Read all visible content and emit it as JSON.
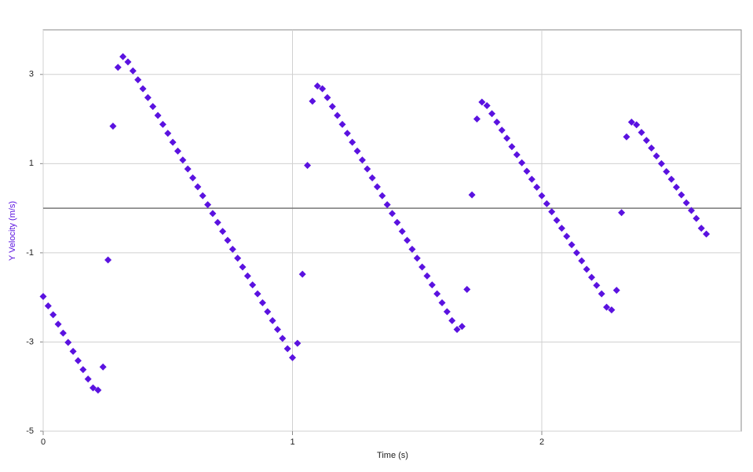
{
  "chart_data": {
    "type": "scatter",
    "x_label": "Time (s)",
    "y_label": "Y Velocity (m/s)",
    "color": "#5a12e0",
    "grid": true,
    "xlim": [
      0,
      2.8
    ],
    "ylim": [
      -5,
      4
    ],
    "xticks": [
      0,
      1,
      2
    ],
    "yticks": [
      -5,
      -3,
      -1,
      1,
      3
    ],
    "x": [
      0,
      0.02,
      0.04,
      0.06,
      0.08,
      0.1,
      0.12,
      0.14,
      0.16,
      0.18,
      0.2,
      0.22,
      0.24,
      0.26,
      0.28,
      0.3,
      0.32,
      0.34,
      0.36,
      0.38,
      0.4,
      0.42,
      0.44,
      0.46,
      0.48,
      0.5,
      0.52,
      0.54,
      0.56,
      0.58,
      0.6,
      0.62,
      0.64,
      0.66,
      0.68,
      0.7,
      0.72,
      0.74,
      0.76,
      0.78,
      0.8,
      0.82,
      0.84,
      0.86,
      0.88,
      0.9,
      0.92,
      0.94,
      0.96,
      0.98,
      1.0,
      1.02,
      1.04,
      1.06,
      1.08,
      1.1,
      1.12,
      1.14,
      1.16,
      1.18,
      1.2,
      1.22,
      1.24,
      1.26,
      1.28,
      1.3,
      1.32,
      1.34,
      1.36,
      1.38,
      1.4,
      1.42,
      1.44,
      1.46,
      1.48,
      1.5,
      1.52,
      1.54,
      1.56,
      1.58,
      1.6,
      1.62,
      1.64,
      1.66,
      1.68,
      1.7,
      1.72,
      1.74,
      1.76,
      1.78,
      1.8,
      1.82,
      1.84,
      1.86,
      1.88,
      1.9,
      1.92,
      1.94,
      1.96,
      1.98,
      2.0,
      2.02,
      2.04,
      2.06,
      2.08,
      2.1,
      2.12,
      2.14,
      2.16,
      2.18,
      2.2,
      2.22,
      2.24,
      2.26,
      2.28,
      2.3,
      2.32,
      2.34,
      2.36,
      2.38,
      2.4,
      2.42,
      2.44,
      2.46,
      2.48,
      2.5,
      2.52,
      2.54,
      2.56,
      2.58,
      2.6,
      2.62,
      2.64,
      2.66
    ],
    "y": [
      -1.98,
      -2.19,
      -2.39,
      -2.6,
      -2.8,
      -3.01,
      -3.21,
      -3.42,
      -3.62,
      -3.83,
      -4.03,
      -4.08,
      -3.56,
      -1.16,
      1.84,
      3.16,
      3.4,
      3.28,
      3.08,
      2.88,
      2.68,
      2.48,
      2.28,
      2.08,
      1.88,
      1.68,
      1.48,
      1.28,
      1.08,
      0.88,
      0.68,
      0.48,
      0.28,
      0.08,
      -0.12,
      -0.32,
      -0.52,
      -0.72,
      -0.92,
      -1.12,
      -1.32,
      -1.52,
      -1.72,
      -1.92,
      -2.12,
      -2.32,
      -2.52,
      -2.72,
      -2.92,
      -3.15,
      -3.35,
      -3.03,
      -1.48,
      0.96,
      2.4,
      2.74,
      2.68,
      2.48,
      2.28,
      2.08,
      1.88,
      1.68,
      1.48,
      1.28,
      1.08,
      0.88,
      0.68,
      0.48,
      0.28,
      0.08,
      -0.12,
      -0.32,
      -0.52,
      -0.72,
      -0.92,
      -1.12,
      -1.32,
      -1.52,
      -1.72,
      -1.92,
      -2.12,
      -2.32,
      -2.52,
      -2.72,
      -2.65,
      -1.82,
      0.3,
      2.0,
      2.38,
      2.3,
      2.12,
      1.93,
      1.75,
      1.57,
      1.38,
      1.2,
      1.02,
      0.83,
      0.65,
      0.47,
      0.28,
      0.1,
      -0.08,
      -0.27,
      -0.45,
      -0.63,
      -0.82,
      -1.0,
      -1.18,
      -1.37,
      -1.55,
      -1.73,
      -1.92,
      -2.22,
      -2.28,
      -1.84,
      -0.1,
      1.6,
      1.93,
      1.87,
      1.7,
      1.52,
      1.35,
      1.17,
      1.0,
      0.82,
      0.65,
      0.47,
      0.3,
      0.12,
      -0.05,
      -0.23,
      -0.45,
      -0.58
    ]
  }
}
